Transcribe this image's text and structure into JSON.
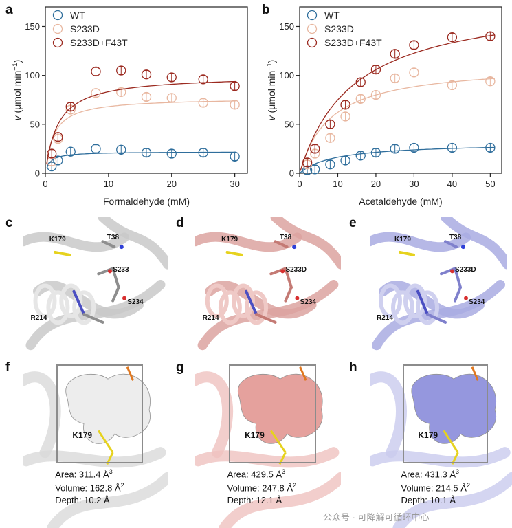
{
  "panels": {
    "a": "a",
    "b": "b",
    "c": "c",
    "d": "d",
    "e": "e",
    "f": "f",
    "g": "g",
    "h": "h"
  },
  "chart_data": [
    {
      "id": "a",
      "type": "scatter",
      "xlabel": "Formaldehyde (mM)",
      "ylabel": "v (μmol min⁻¹)",
      "ylabel_parts": {
        "italic": "v",
        "rest": " (μmol min",
        "sup": "−1",
        "end": ")"
      },
      "xlim": [
        0,
        32
      ],
      "ylim": [
        0,
        170
      ],
      "xticks": [
        0,
        10,
        20,
        30
      ],
      "yticks": [
        0,
        50,
        100,
        150
      ],
      "legend": "top-left",
      "series": [
        {
          "name": "WT",
          "color": "#2f6e9c",
          "x": [
            1,
            2,
            4,
            8,
            12,
            16,
            20,
            25,
            30
          ],
          "y": [
            7,
            13,
            22,
            25,
            24,
            21,
            20,
            21,
            17
          ],
          "fit_vmax": 22,
          "fit_k": 0.7
        },
        {
          "name": "S233D",
          "color": "#e8b7a0",
          "x": [
            1,
            2,
            4,
            8,
            12,
            16,
            20,
            25,
            30
          ],
          "y": [
            12,
            35,
            65,
            82,
            83,
            78,
            77,
            72,
            70
          ],
          "fit_vmax": 77,
          "fit_k": 1.3
        },
        {
          "name": "S233D+F43T",
          "color": "#9b2a20",
          "x": [
            1,
            2,
            4,
            8,
            12,
            16,
            20,
            25,
            30
          ],
          "y": [
            20,
            37,
            68,
            104,
            105,
            101,
            98,
            96,
            89
          ],
          "fit_vmax": 100,
          "fit_k": 2.0
        }
      ]
    },
    {
      "id": "b",
      "type": "scatter",
      "xlabel": "Acetaldehyde (mM)",
      "ylabel": "v (μmol min⁻¹)",
      "ylabel_parts": {
        "italic": "v",
        "rest": " (μmol min",
        "sup": "−1",
        "end": ")"
      },
      "xlim": [
        0,
        53
      ],
      "ylim": [
        0,
        170
      ],
      "xticks": [
        0,
        10,
        20,
        30,
        40,
        50
      ],
      "yticks": [
        0,
        50,
        100,
        150
      ],
      "legend": "top-left",
      "series": [
        {
          "name": "WT",
          "color": "#2f6e9c",
          "x": [
            2,
            4,
            8,
            12,
            16,
            20,
            25,
            30,
            40,
            50
          ],
          "y": [
            3,
            4,
            9,
            13,
            18,
            21,
            25,
            26,
            26,
            26
          ],
          "fit_vmax": 31,
          "fit_k": 9
        },
        {
          "name": "S233D",
          "color": "#e8b7a0",
          "x": [
            2,
            4,
            8,
            12,
            16,
            20,
            25,
            30,
            40,
            50
          ],
          "y": [
            9,
            20,
            36,
            58,
            76,
            80,
            97,
            103,
            90,
            94
          ],
          "fit_vmax": 112,
          "fit_k": 8
        },
        {
          "name": "S233D+F43T",
          "color": "#9b2a20",
          "x": [
            2,
            4,
            8,
            12,
            16,
            20,
            25,
            30,
            40,
            50
          ],
          "y": [
            11,
            25,
            50,
            70,
            93,
            106,
            122,
            131,
            139,
            140
          ],
          "fit_vmax": 180,
          "fit_k": 14
        }
      ]
    }
  ],
  "structures": [
    {
      "id": "c",
      "bg": "#e6e6e6",
      "ribbon": "#c9c9c9",
      "stick": "#8e8e8e",
      "labels": {
        "k179": "K179",
        "t38": "T38",
        "s233": "S233",
        "r214": "R214",
        "s234": "S234"
      }
    },
    {
      "id": "d",
      "bg": "#efc9c6",
      "ribbon": "#dca3a0",
      "stick": "#c47a74",
      "labels": {
        "k179": "K179",
        "t38": "T38",
        "s233": "S233D",
        "r214": "R214",
        "s234": "S234"
      }
    },
    {
      "id": "e",
      "bg": "#cfd0ef",
      "ribbon": "#a9abe2",
      "stick": "#7f80cc",
      "labels": {
        "k179": "K179",
        "t38": "T38",
        "s233": "S233D",
        "r214": "R214",
        "s234": "S234"
      }
    }
  ],
  "cavities": [
    {
      "id": "f",
      "color": "#d9d9d9",
      "blob": "#ececec",
      "label": "K179",
      "area": "Area: 311.4 Å",
      "volume": "Volume: 162.8 Å",
      "depth": "Depth: 10.2 Å"
    },
    {
      "id": "g",
      "color": "#efc2bf",
      "blob": "#e39a95",
      "label": "K179",
      "area": "Area: 429.5 Å",
      "volume": "Volume: 247.8 Å",
      "depth": "Depth: 12.1 Å"
    },
    {
      "id": "h",
      "color": "#c9cbee",
      "blob": "#8d8fdc",
      "label": "K179",
      "area": "Area: 431.3 Å",
      "volume": "Volume: 214.5 Å",
      "depth": "Depth: 10.1 Å"
    }
  ],
  "area_sup": "3",
  "volume_sup": "2",
  "watermark": "公众号 · 可降解可循环中心"
}
